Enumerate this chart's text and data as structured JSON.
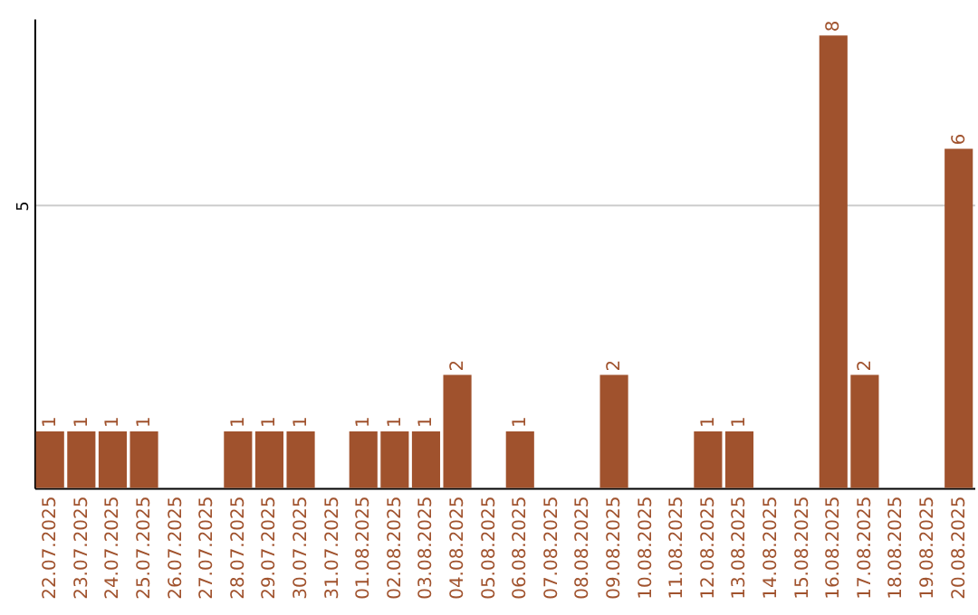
{
  "chart_data": {
    "type": "bar",
    "categories": [
      "22.07.2025",
      "23.07.2025",
      "24.07.2025",
      "25.07.2025",
      "26.07.2025",
      "27.07.2025",
      "28.07.2025",
      "29.07.2025",
      "30.07.2025",
      "31.07.2025",
      "01.08.2025",
      "02.08.2025",
      "03.08.2025",
      "04.08.2025",
      "05.08.2025",
      "06.08.2025",
      "07.08.2025",
      "08.08.2025",
      "09.08.2025",
      "10.08.2025",
      "11.08.2025",
      "12.08.2025",
      "13.08.2025",
      "14.08.2025",
      "15.08.2025",
      "16.08.2025",
      "17.08.2025",
      "18.08.2025",
      "19.08.2025",
      "20.08.2025"
    ],
    "values": [
      1,
      1,
      1,
      1,
      null,
      null,
      1,
      1,
      1,
      null,
      1,
      1,
      1,
      2,
      null,
      1,
      null,
      null,
      2,
      null,
      null,
      1,
      1,
      null,
      null,
      8,
      2,
      null,
      null,
      6
    ],
    "color": "#a0522d",
    "ylim": [
      0,
      8.3
    ],
    "yticks": [
      5
    ],
    "grid": "y",
    "data_labels": true
  }
}
